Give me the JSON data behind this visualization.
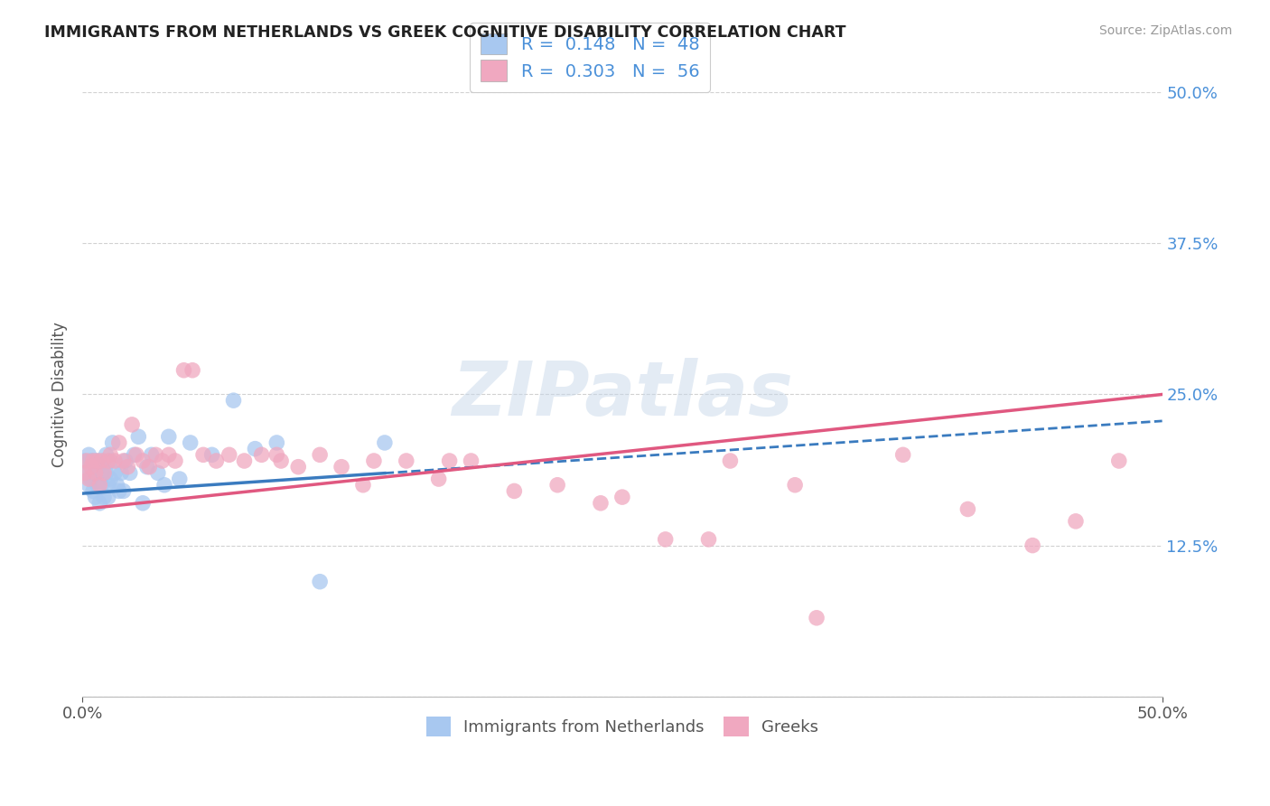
{
  "title": "IMMIGRANTS FROM NETHERLANDS VS GREEK COGNITIVE DISABILITY CORRELATION CHART",
  "source": "Source: ZipAtlas.com",
  "ylabel": "Cognitive Disability",
  "xmin": 0.0,
  "xmax": 0.5,
  "ymin": 0.0,
  "ymax": 0.5,
  "series1_color": "#a8c8f0",
  "series2_color": "#f0a8c0",
  "line1_color": "#3a7bbf",
  "line2_color": "#e05880",
  "R1": 0.148,
  "N1": 48,
  "R2": 0.303,
  "N2": 56,
  "watermark": "ZIPatlas",
  "background_color": "#ffffff",
  "grid_color": "#cccccc",
  "right_tick_color": "#4a90d9",
  "line1_intercept": 0.168,
  "line1_slope": 0.12,
  "line1_solid_end": 0.14,
  "line1_dash_end": 0.5,
  "line2_intercept": 0.155,
  "line2_slope": 0.19,
  "series1_x": [
    0.001,
    0.002,
    0.003,
    0.003,
    0.004,
    0.004,
    0.005,
    0.005,
    0.006,
    0.006,
    0.007,
    0.007,
    0.008,
    0.008,
    0.009,
    0.009,
    0.01,
    0.01,
    0.011,
    0.011,
    0.012,
    0.012,
    0.013,
    0.013,
    0.014,
    0.015,
    0.016,
    0.017,
    0.018,
    0.019,
    0.02,
    0.022,
    0.024,
    0.026,
    0.028,
    0.03,
    0.032,
    0.035,
    0.038,
    0.04,
    0.045,
    0.05,
    0.06,
    0.07,
    0.08,
    0.09,
    0.11,
    0.14
  ],
  "series1_y": [
    0.195,
    0.185,
    0.175,
    0.2,
    0.18,
    0.195,
    0.17,
    0.195,
    0.165,
    0.185,
    0.195,
    0.175,
    0.16,
    0.19,
    0.185,
    0.175,
    0.195,
    0.165,
    0.2,
    0.185,
    0.175,
    0.165,
    0.18,
    0.195,
    0.21,
    0.185,
    0.175,
    0.17,
    0.185,
    0.17,
    0.195,
    0.185,
    0.2,
    0.215,
    0.16,
    0.19,
    0.2,
    0.185,
    0.175,
    0.215,
    0.18,
    0.21,
    0.2,
    0.245,
    0.205,
    0.21,
    0.095,
    0.21
  ],
  "series2_x": [
    0.001,
    0.002,
    0.003,
    0.004,
    0.005,
    0.006,
    0.007,
    0.008,
    0.009,
    0.01,
    0.012,
    0.013,
    0.015,
    0.017,
    0.019,
    0.021,
    0.023,
    0.025,
    0.028,
    0.031,
    0.034,
    0.037,
    0.04,
    0.043,
    0.047,
    0.051,
    0.056,
    0.062,
    0.068,
    0.075,
    0.083,
    0.092,
    0.1,
    0.11,
    0.12,
    0.135,
    0.15,
    0.165,
    0.18,
    0.2,
    0.22,
    0.24,
    0.27,
    0.3,
    0.34,
    0.38,
    0.41,
    0.44,
    0.46,
    0.48,
    0.33,
    0.29,
    0.25,
    0.17,
    0.13,
    0.09
  ],
  "series2_y": [
    0.185,
    0.195,
    0.18,
    0.19,
    0.195,
    0.185,
    0.195,
    0.175,
    0.195,
    0.185,
    0.195,
    0.2,
    0.195,
    0.21,
    0.195,
    0.19,
    0.225,
    0.2,
    0.195,
    0.19,
    0.2,
    0.195,
    0.2,
    0.195,
    0.27,
    0.27,
    0.2,
    0.195,
    0.2,
    0.195,
    0.2,
    0.195,
    0.19,
    0.2,
    0.19,
    0.195,
    0.195,
    0.18,
    0.195,
    0.17,
    0.175,
    0.16,
    0.13,
    0.195,
    0.065,
    0.2,
    0.155,
    0.125,
    0.145,
    0.195,
    0.175,
    0.13,
    0.165,
    0.195,
    0.175,
    0.2
  ]
}
